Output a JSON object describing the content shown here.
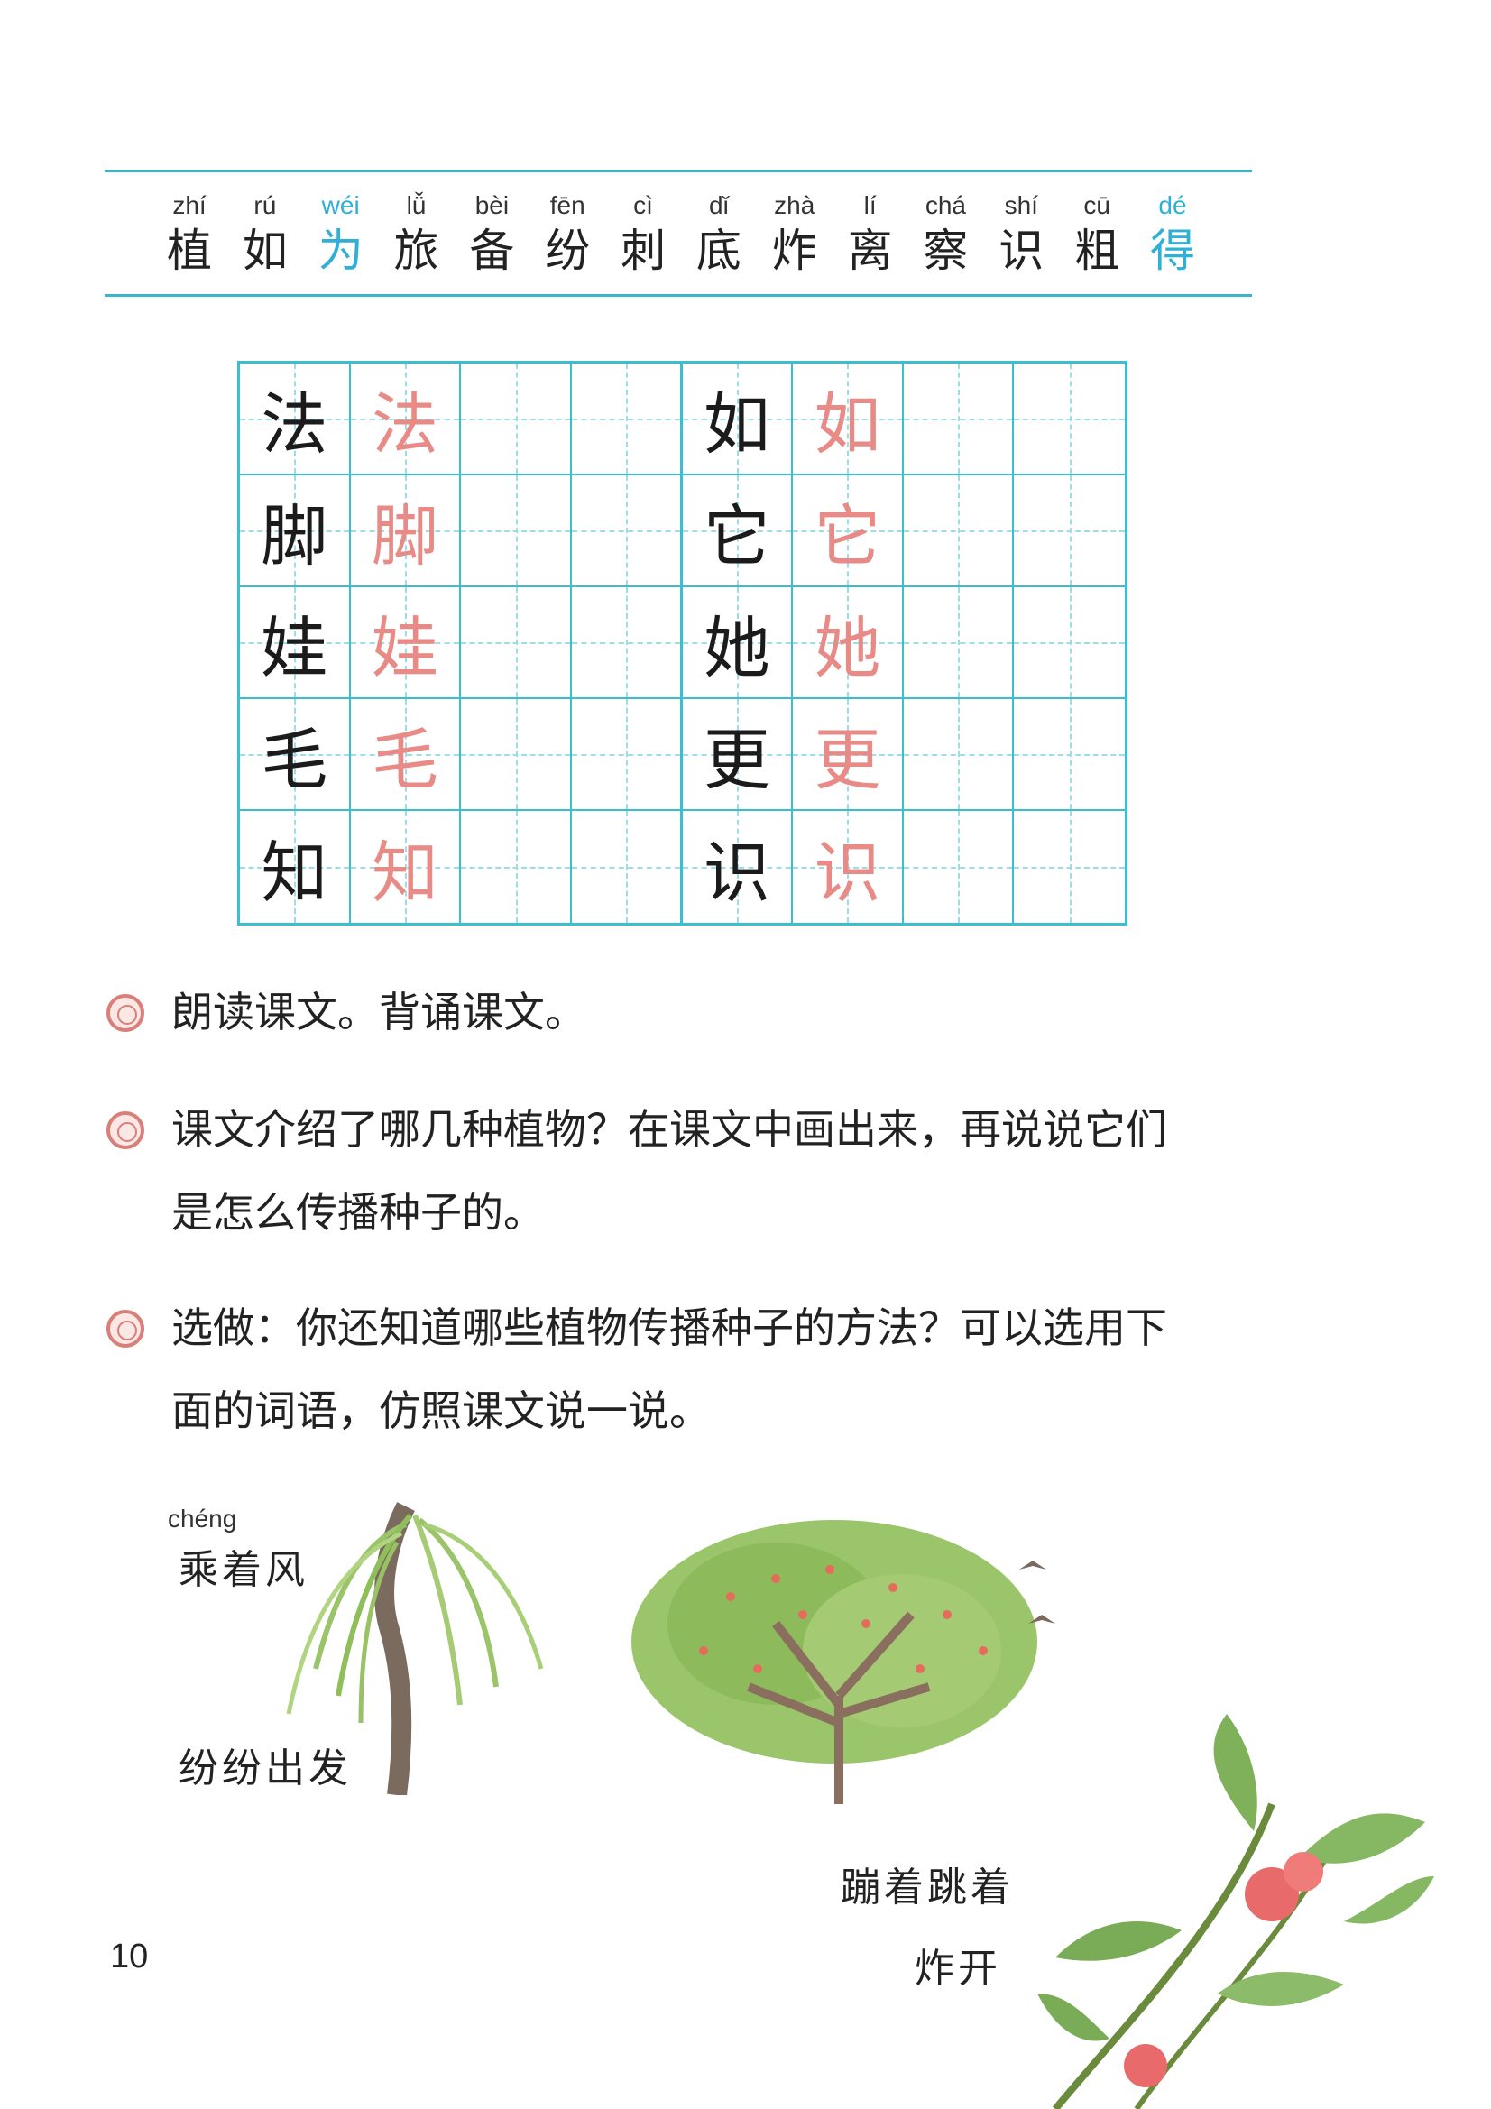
{
  "vocabulary": [
    {
      "pinyin": "zhí",
      "hanzi": "植"
    },
    {
      "pinyin": "rú",
      "hanzi": "如"
    },
    {
      "pinyin": "wéi",
      "hanzi": "为"
    },
    {
      "pinyin": "lǚ",
      "hanzi": "旅"
    },
    {
      "pinyin": "bèi",
      "hanzi": "备"
    },
    {
      "pinyin": "fēn",
      "hanzi": "纷"
    },
    {
      "pinyin": "cì",
      "hanzi": "刺"
    },
    {
      "pinyin": "dǐ",
      "hanzi": "底"
    },
    {
      "pinyin": "zhà",
      "hanzi": "炸"
    },
    {
      "pinyin": "lí",
      "hanzi": "离"
    },
    {
      "pinyin": "chá",
      "hanzi": "察"
    },
    {
      "pinyin": "shí",
      "hanzi": "识"
    },
    {
      "pinyin": "cū",
      "hanzi": "粗"
    },
    {
      "pinyin": "dé",
      "hanzi": "得"
    }
  ],
  "writing_grid": {
    "left": [
      "法",
      "脚",
      "娃",
      "毛",
      "知"
    ],
    "right": [
      "如",
      "它",
      "她",
      "更",
      "识"
    ]
  },
  "exercises": {
    "one": "朗读课文。背诵课文。",
    "two_line1": "课文介绍了哪几种植物？在课文中画出来，再说说它们",
    "two_line2": "是怎么传播种子的。",
    "three_line1": "选做：你还知道哪些植物传播种子的方法？可以选用下",
    "three_line2": "面的词语，仿照课文说一说。"
  },
  "illustration": {
    "pinyin": "chéng",
    "label1": "乘着风",
    "label2": "纷纷出发",
    "label3": "蹦着跳着",
    "label4": "炸开"
  },
  "page_number": "10",
  "colors": {
    "accent": "#3bbfd0",
    "highlight": "#2fb0d4",
    "trace": "#e88a85"
  }
}
